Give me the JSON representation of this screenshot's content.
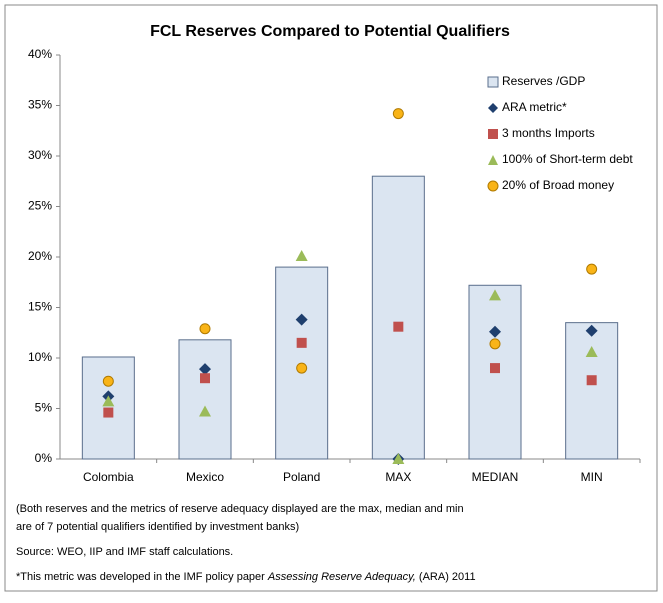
{
  "chart_data": {
    "type": "bar",
    "title": "FCL Reserves Compared to Potential Qualifiers",
    "categories": [
      "Colombia",
      "Mexico",
      "Poland",
      "MAX",
      "MEDIAN",
      "MIN"
    ],
    "series": [
      {
        "name": "Reserves /GDP",
        "color": "#dbe5f1",
        "marker": "bar",
        "values": [
          10.1,
          11.8,
          19.0,
          28.0,
          17.2,
          13.5
        ]
      },
      {
        "name": "ARA metric*",
        "color": "#1f3f6e",
        "marker": "diamond",
        "values": [
          6.2,
          8.9,
          13.8,
          0,
          12.6,
          12.7
        ]
      },
      {
        "name": "3 months Imports",
        "color": "#c0504d",
        "marker": "square",
        "values": [
          4.6,
          8.0,
          11.5,
          13.1,
          9.0,
          7.8
        ]
      },
      {
        "name": "100% of Short-term debt",
        "color": "#9bbb59",
        "marker": "triangle",
        "values": [
          5.7,
          4.7,
          20.1,
          0,
          16.2,
          10.6
        ]
      },
      {
        "name": "20% of Broad money",
        "color": "#f9b418",
        "marker": "circle",
        "values": [
          7.7,
          12.9,
          9.0,
          34.2,
          11.4,
          18.8
        ]
      }
    ],
    "ylim": [
      0,
      40
    ],
    "yticks": [
      {
        "value": 0,
        "label": "0%"
      },
      {
        "value": 5,
        "label": "5%"
      },
      {
        "value": 10,
        "label": "10%"
      },
      {
        "value": 15,
        "label": "15%"
      },
      {
        "value": 20,
        "label": "20%"
      },
      {
        "value": 25,
        "label": "25%"
      },
      {
        "value": 30,
        "label": "30%"
      },
      {
        "value": 35,
        "label": "35%"
      },
      {
        "value": 40,
        "label": "40%"
      }
    ],
    "grid": false,
    "legend": "upper right",
    "notes": [
      "(Both reserves and the metrics of reserve adequacy displayed are the max, median and min",
      "are of 7 potential qualifiers identified by investment banks)",
      "Source: WEO, IIP and IMF staff calculations."
    ],
    "footnote": [
      "*This metric was developed in the IMF policy paper ",
      "Assessing Reserve Adequacy,",
      " (ARA) 2011"
    ]
  }
}
